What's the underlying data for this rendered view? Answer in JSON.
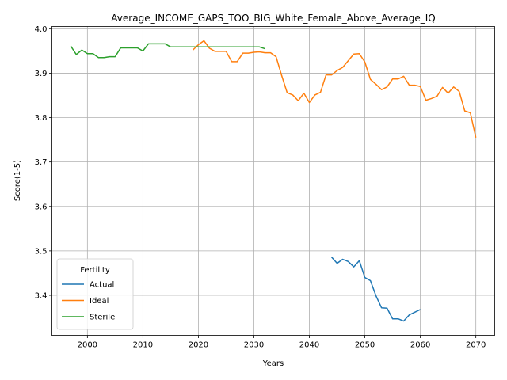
{
  "chart_data": {
    "type": "line",
    "title": "Average_INCOME_GAPS_TOO_BIG_White_Female_Above_Average_IQ",
    "xlabel": "Years",
    "ylabel": "Score(1-5)",
    "xlim": [
      1993.6,
      2073.4
    ],
    "ylim": [
      3.31,
      4.005
    ],
    "xticks": [
      2000,
      2010,
      2020,
      2030,
      2040,
      2050,
      2060,
      2070
    ],
    "yticks": [
      3.4,
      3.5,
      3.6,
      3.7,
      3.8,
      3.9,
      4.0
    ],
    "grid": true,
    "legend": {
      "title": "Fertility",
      "position": "lower-left"
    },
    "series": [
      {
        "name": "Actual",
        "color": "#1f77b4",
        "x": [
          2044,
          2045,
          2046,
          2047,
          2048,
          2049,
          2050,
          2051,
          2052,
          2053,
          2054,
          2055,
          2056,
          2057,
          2058,
          2059,
          2060
        ],
        "y": [
          3.486,
          3.472,
          3.481,
          3.476,
          3.464,
          3.478,
          3.44,
          3.433,
          3.399,
          3.372,
          3.371,
          3.347,
          3.347,
          3.342,
          3.356,
          3.362,
          3.368
        ]
      },
      {
        "name": "Ideal",
        "color": "#ff7f0e",
        "x": [
          2019,
          2020,
          2021,
          2022,
          2023,
          2024,
          2025,
          2026,
          2027,
          2028,
          2029,
          2030,
          2031,
          2032,
          2033,
          2034,
          2035,
          2036,
          2037,
          2038,
          2039,
          2040,
          2041,
          2042,
          2043,
          2044,
          2045,
          2046,
          2047,
          2048,
          2049,
          2050,
          2051,
          2052,
          2053,
          2054,
          2055,
          2056,
          2057,
          2058,
          2059,
          2060,
          2061,
          2062,
          2063,
          2064,
          2065,
          2066,
          2067,
          2068,
          2069,
          2070
        ],
        "y": [
          3.952,
          3.964,
          3.973,
          3.956,
          3.949,
          3.949,
          3.949,
          3.926,
          3.926,
          3.945,
          3.945,
          3.947,
          3.948,
          3.946,
          3.946,
          3.937,
          3.895,
          3.856,
          3.851,
          3.838,
          3.855,
          3.834,
          3.851,
          3.857,
          3.896,
          3.896,
          3.906,
          3.913,
          3.928,
          3.943,
          3.944,
          3.925,
          3.886,
          3.875,
          3.863,
          3.869,
          3.887,
          3.887,
          3.893,
          3.873,
          3.873,
          3.87,
          3.839,
          3.843,
          3.848,
          3.868,
          3.855,
          3.869,
          3.859,
          3.815,
          3.811,
          3.755
        ]
      },
      {
        "name": "Sterile",
        "color": "#2ca02c",
        "x": [
          1997,
          1998,
          1999,
          2000,
          2001,
          2002,
          2003,
          2004,
          2005,
          2006,
          2007,
          2008,
          2009,
          2010,
          2011,
          2012,
          2013,
          2014,
          2015,
          2016,
          2017,
          2018,
          2019,
          2020,
          2021,
          2022,
          2023,
          2024,
          2025,
          2026,
          2027,
          2028,
          2029,
          2030,
          2031,
          2032
        ],
        "y": [
          3.961,
          3.942,
          3.952,
          3.944,
          3.944,
          3.935,
          3.935,
          3.937,
          3.937,
          3.957,
          3.957,
          3.957,
          3.957,
          3.95,
          3.966,
          3.966,
          3.966,
          3.966,
          3.959,
          3.959,
          3.959,
          3.959,
          3.959,
          3.959,
          3.959,
          3.959,
          3.959,
          3.959,
          3.959,
          3.959,
          3.959,
          3.959,
          3.959,
          3.959,
          3.959,
          3.955
        ]
      }
    ]
  }
}
